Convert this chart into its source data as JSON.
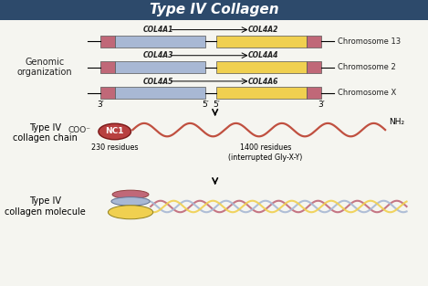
{
  "title": "Type IV Collagen",
  "title_bg": "#2d4a6b",
  "title_color": "#ffffff",
  "title_fontsize": 11,
  "panel_bg": "#f5f5f0",
  "gene_rows": [
    {
      "label1": "COL4A1",
      "label2": "COL4A2",
      "chrom": "Chromosome 13"
    },
    {
      "label1": "COL4A3",
      "label2": "COL4A4",
      "chrom": "Chromosome 2"
    },
    {
      "label1": "COL4A5",
      "label2": "COL4A6",
      "chrom": "Chromosome X"
    }
  ],
  "blue_box_color": "#a8b8d4",
  "yellow_box_color": "#f0d050",
  "pink_box_color": "#c06878",
  "left_label_genomic": "Genomic\norganization",
  "chain_left_label": "Type IV\ncollagen chain",
  "molecule_label": "Type IV\ncollagen molecule",
  "nc1_color": "#b84040",
  "nc1_text": "NC1",
  "chain_color": "#c05040",
  "coo_text": "COO⁻",
  "nh2_text": "NH₂",
  "residues_230": "230 residues",
  "residues_1400": "1400 residues\n(interrupted Gly-X-Y)",
  "three_prime_left": "3′",
  "five_prime_left": "5′",
  "five_prime_right": "5′",
  "three_prime_right": "3′",
  "triple_colors": [
    "#c06878",
    "#a8b8d4",
    "#f0d050"
  ],
  "triple_wave_colors": [
    "#c06878",
    "#a8b8d4",
    "#f0d050"
  ]
}
